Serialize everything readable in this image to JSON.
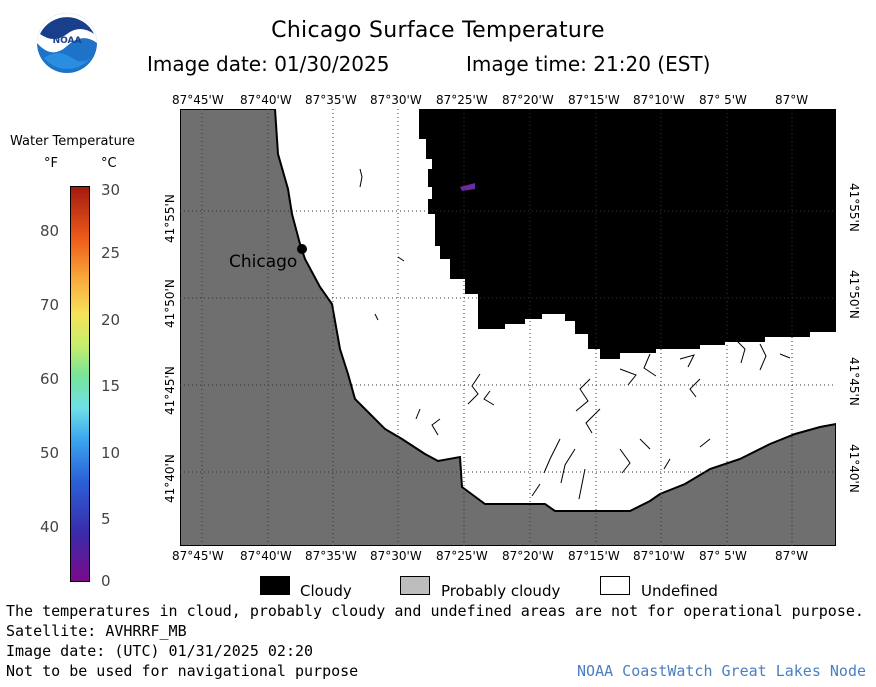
{
  "header": {
    "title": "Chicago Surface Temperature",
    "image_date": "Image date: 01/30/2025",
    "image_time": "Image time: 21:20 (EST)",
    "logo_text": "NOAA"
  },
  "colorbar": {
    "title": "Water Temperature",
    "unit_f": "°F",
    "unit_c": "°C",
    "f_ticks": [
      "80",
      "70",
      "60",
      "50",
      "40"
    ],
    "c_ticks": [
      "30",
      "25",
      "20",
      "15",
      "10",
      "5",
      "0"
    ]
  },
  "map": {
    "city_label": "Chicago",
    "lon_labels": [
      "87°45'W",
      "87°40'W",
      "87°35'W",
      "87°30'W",
      "87°25'W",
      "87°20'W",
      "87°15'W",
      "87°10'W",
      "87° 5'W",
      "87°W"
    ],
    "lat_labels": [
      "41°55'N",
      "41°50'N",
      "41°45'N",
      "41°40'N"
    ],
    "colors": {
      "land": "#6f6f6f",
      "cloudy": "#000000",
      "probably_cloudy": "#bdbdbd",
      "undefined": "#ffffff"
    }
  },
  "legend": {
    "cloudy": "Cloudy",
    "probably_cloudy": "Probably cloudy",
    "undefined": "Undefined"
  },
  "footer": {
    "note": "The temperatures in cloud, probably cloudy and undefined areas are not for operational purpose.",
    "satellite": "Satellite: AVHRRF_MB",
    "utc_date": "Image date: (UTC) 01/31/2025  02:20",
    "nav": "Not to be used for navigational purpose",
    "credit": "NOAA CoastWatch Great Lakes Node"
  }
}
